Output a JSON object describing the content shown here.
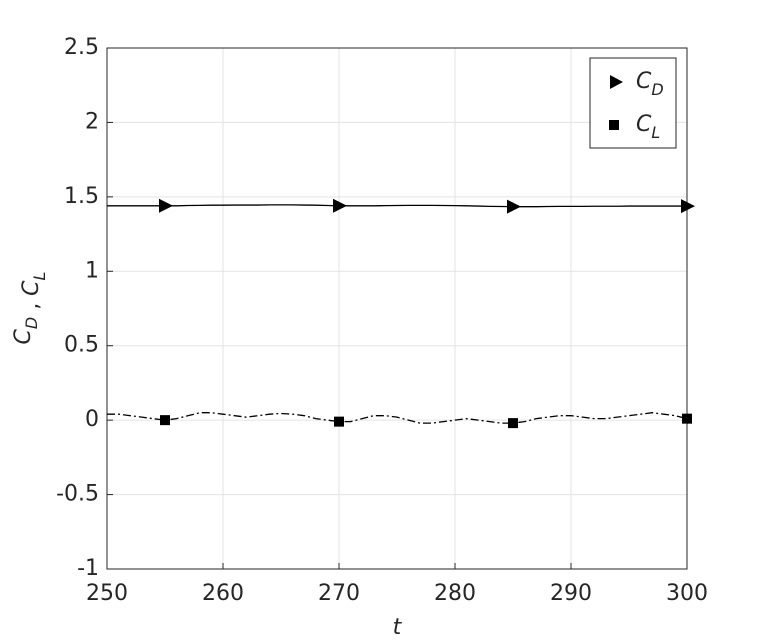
{
  "chart_data": {
    "type": "line",
    "xlabel": "t",
    "ylabel": [
      "CD",
      ",",
      "CL"
    ],
    "x": [
      250,
      251,
      252,
      253,
      254,
      255,
      256,
      257,
      258,
      259,
      260,
      261,
      262,
      263,
      264,
      265,
      266,
      267,
      268,
      269,
      270,
      271,
      272,
      273,
      274,
      275,
      276,
      277,
      278,
      279,
      280,
      281,
      282,
      283,
      284,
      285,
      286,
      287,
      288,
      289,
      290,
      291,
      292,
      293,
      294,
      295,
      296,
      297,
      298,
      299,
      300
    ],
    "series": [
      {
        "name": "CD",
        "color": "#000000",
        "linestyle": "solid",
        "marker": "triangle-right",
        "markevery": 15,
        "values": [
          1.44,
          1.44,
          1.44,
          1.44,
          1.44,
          1.44,
          1.44,
          1.442,
          1.443,
          1.444,
          1.444,
          1.445,
          1.445,
          1.445,
          1.446,
          1.446,
          1.446,
          1.445,
          1.444,
          1.442,
          1.44,
          1.44,
          1.44,
          1.44,
          1.441,
          1.442,
          1.443,
          1.443,
          1.443,
          1.442,
          1.441,
          1.44,
          1.438,
          1.436,
          1.435,
          1.434,
          1.434,
          1.434,
          1.435,
          1.436,
          1.436,
          1.436,
          1.437,
          1.437,
          1.437,
          1.438,
          1.438,
          1.438,
          1.438,
          1.438,
          1.438
        ]
      },
      {
        "name": "CL",
        "color": "#000000",
        "linestyle": "dashdot",
        "marker": "square",
        "markevery": 15,
        "values": [
          0.04,
          0.04,
          0.03,
          0.02,
          0.01,
          0.0,
          0.01,
          0.03,
          0.05,
          0.05,
          0.04,
          0.03,
          0.02,
          0.03,
          0.04,
          0.045,
          0.04,
          0.03,
          0.01,
          0.0,
          -0.01,
          -0.01,
          0.01,
          0.03,
          0.03,
          0.02,
          0.0,
          -0.02,
          -0.02,
          -0.01,
          0.0,
          0.01,
          0.0,
          -0.01,
          -0.02,
          -0.02,
          -0.01,
          0.01,
          0.02,
          0.03,
          0.03,
          0.02,
          0.01,
          0.01,
          0.02,
          0.03,
          0.04,
          0.05,
          0.04,
          0.03,
          0.01
        ]
      }
    ],
    "xlim": [
      250,
      300
    ],
    "xticks": [
      250,
      260,
      270,
      280,
      290,
      300
    ],
    "ylim": [
      -1,
      2.5
    ],
    "yticks": [
      -1,
      -0.5,
      0,
      0.5,
      1,
      1.5,
      2,
      2.5
    ],
    "grid": true,
    "legend": "upper right"
  }
}
